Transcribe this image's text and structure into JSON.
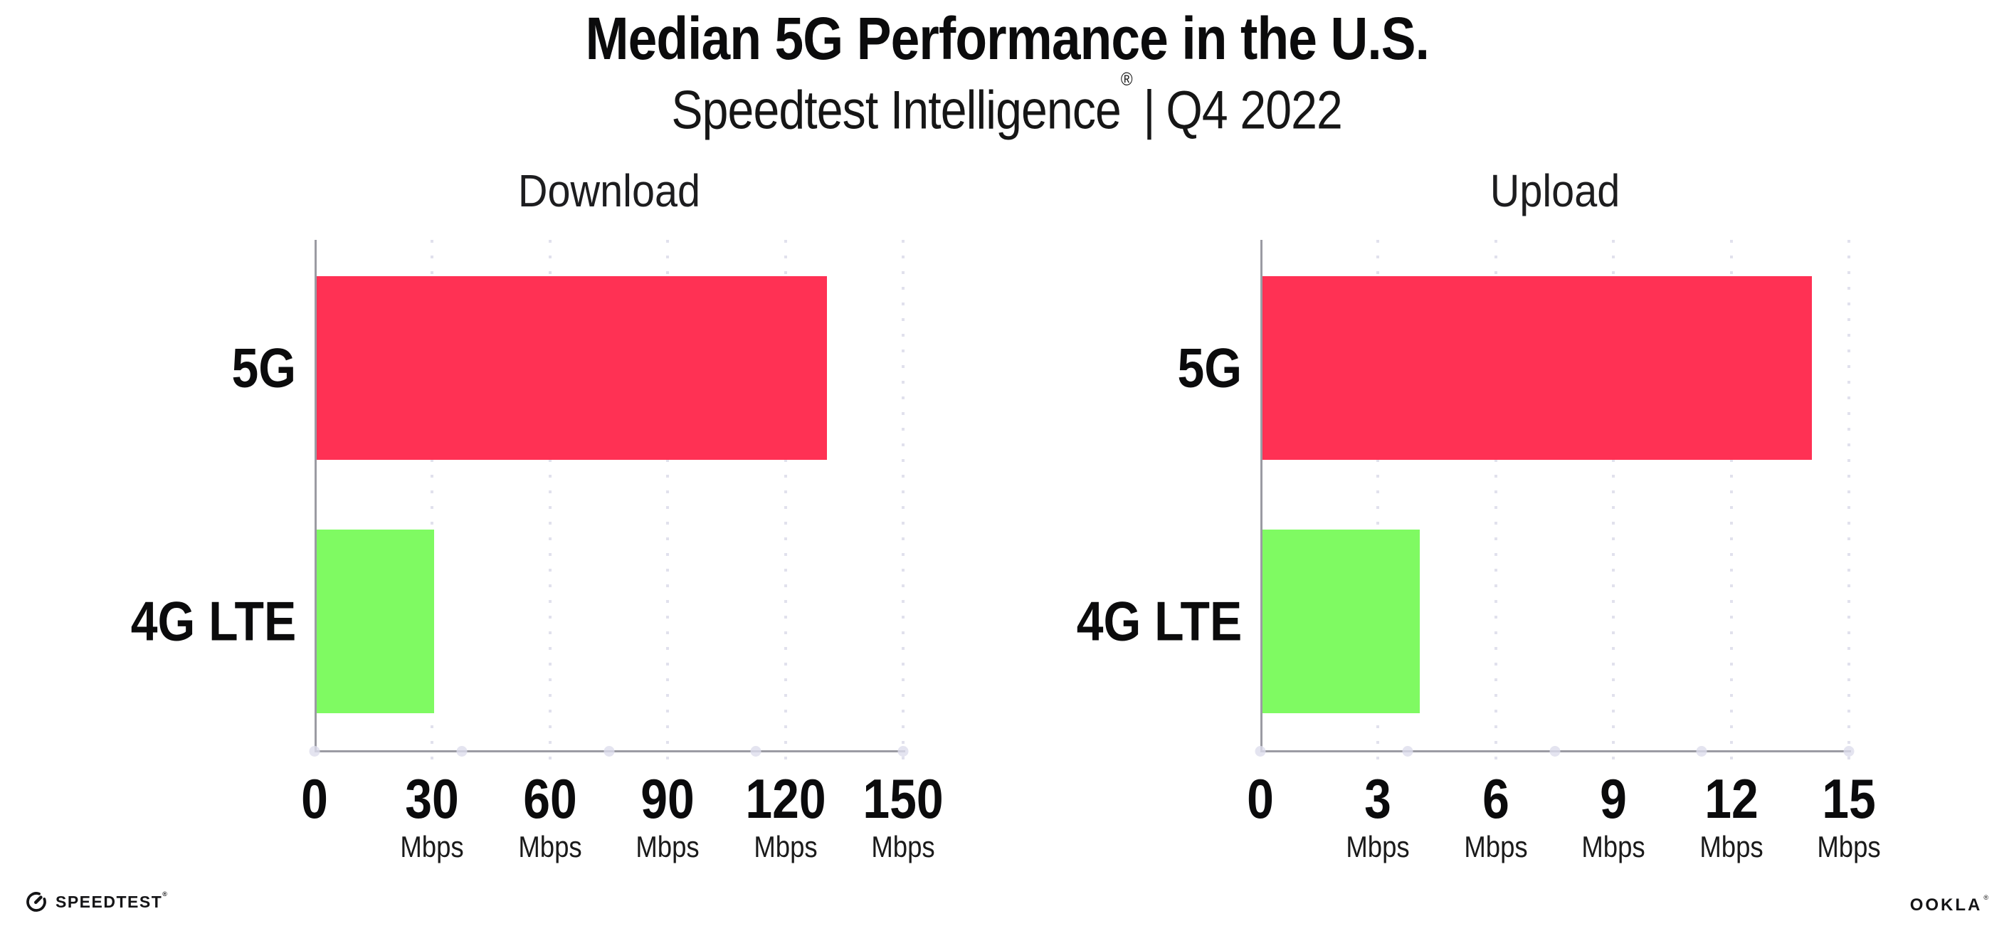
{
  "header": {
    "title": "Median 5G Performance in the U.S.",
    "subtitle_brand": "Speedtest Intelligence",
    "subtitle_reg": "®",
    "subtitle_separator": "|",
    "subtitle_period": "Q4 2022"
  },
  "chart_data": [
    {
      "type": "bar",
      "orientation": "horizontal",
      "title": "Download",
      "categories": [
        "5G",
        "4G LTE"
      ],
      "values": [
        130,
        30
      ],
      "unit": "Mbps",
      "xlabel": "",
      "xlim": [
        0,
        150
      ],
      "xticks": [
        0,
        30,
        60,
        90,
        120,
        150
      ],
      "bar_colors": [
        "#FF3154",
        "#7FFA62"
      ],
      "grid": "dotted-vertical",
      "legend": "none"
    },
    {
      "type": "bar",
      "orientation": "horizontal",
      "title": "Upload",
      "categories": [
        "5G",
        "4G LTE"
      ],
      "values": [
        14,
        4
      ],
      "unit": "Mbps",
      "xlabel": "",
      "xlim": [
        0,
        15
      ],
      "xticks": [
        0,
        3,
        6,
        9,
        12,
        15
      ],
      "bar_colors": [
        "#FF3154",
        "#7FFA62"
      ],
      "grid": "dotted-vertical",
      "legend": "none"
    }
  ],
  "footer": {
    "speedtest_label": "SPEEDTEST",
    "speedtest_reg": "®",
    "ookla_label": "OOKLA",
    "ookla_reg": "®"
  },
  "colors": {
    "bar_5g": "#FF3154",
    "bar_4g": "#7FFA62",
    "axis_line": "#9B9BA3",
    "grid_dot": "#E1E1ED",
    "axis_tick_dot": "#DDDDEC",
    "text": "#0B0B0C",
    "background": "#FFFFFF"
  }
}
